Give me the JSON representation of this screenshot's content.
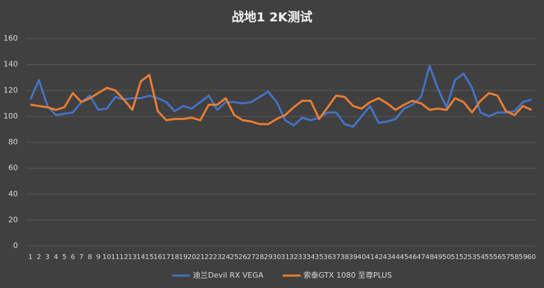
{
  "chart_data": {
    "type": "line",
    "title": "战地1 2K测试",
    "categories": [
      "1",
      "2",
      "3",
      "4",
      "5",
      "6",
      "7",
      "8",
      "9",
      "10",
      "11",
      "12",
      "13",
      "14",
      "15",
      "16",
      "17",
      "18",
      "19",
      "20",
      "21",
      "22",
      "23",
      "24",
      "25",
      "26",
      "27",
      "28",
      "29",
      "30",
      "31",
      "32",
      "33",
      "34",
      "35",
      "36",
      "37",
      "38",
      "39",
      "40",
      "41",
      "42",
      "43",
      "44",
      "45",
      "46",
      "47",
      "48",
      "49",
      "50",
      "51",
      "52",
      "53",
      "54",
      "55",
      "56",
      "57",
      "58",
      "59",
      "60"
    ],
    "series": [
      {
        "name": "迪兰Devil RX VEGA",
        "color": "#4472c4",
        "values": [
          113,
          128,
          108,
          101,
          102,
          103,
          111,
          116,
          105,
          106,
          115,
          113,
          114,
          114,
          116,
          114,
          111,
          104,
          108,
          106,
          111,
          116,
          105,
          111,
          111,
          110,
          111,
          115,
          119,
          111,
          97,
          93,
          99,
          97,
          99,
          103,
          103,
          94,
          92,
          100,
          108,
          95,
          96,
          98,
          106,
          109,
          115,
          139,
          121,
          107,
          128,
          133,
          122,
          103,
          100,
          103,
          103,
          104,
          111,
          113
        ]
      },
      {
        "name": "索泰GTX 1080 至尊PLUS",
        "color": "#ed7d31",
        "values": [
          109,
          108,
          107,
          105,
          107,
          118,
          111,
          114,
          118,
          122,
          120,
          113,
          105,
          127,
          132,
          104,
          97,
          98,
          98,
          99,
          97,
          109,
          109,
          114,
          101,
          97,
          96,
          94,
          94,
          98,
          101,
          107,
          112,
          112,
          98,
          107,
          116,
          115,
          108,
          106,
          111,
          114,
          110,
          105,
          109,
          112,
          110,
          105,
          106,
          105,
          114,
          111,
          103,
          112,
          118,
          116,
          104,
          101,
          108,
          105
        ]
      }
    ],
    "ylim": [
      0,
      160
    ],
    "yticks": [
      0,
      20,
      40,
      60,
      80,
      100,
      120,
      140,
      160
    ],
    "grid": true,
    "legend": "bottom"
  }
}
